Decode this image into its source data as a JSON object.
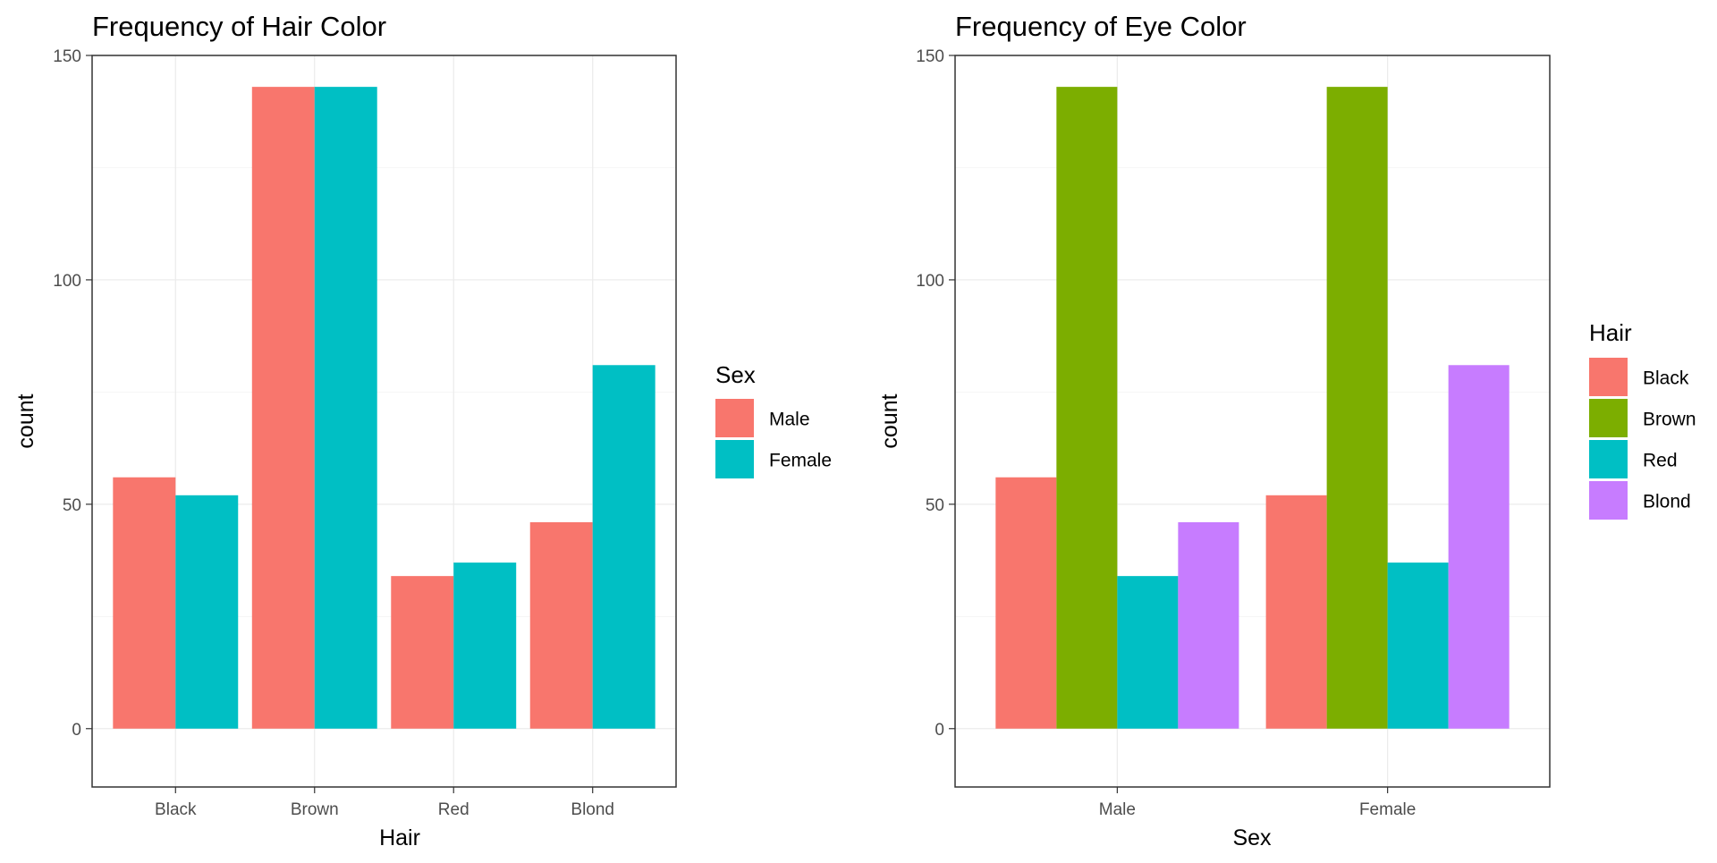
{
  "chart_data": [
    {
      "type": "bar",
      "title": "Frequency of Hair Color",
      "xlabel": "Hair",
      "ylabel": "count",
      "categories": [
        "Black",
        "Brown",
        "Red",
        "Blond"
      ],
      "series": [
        {
          "name": "Male",
          "values": [
            56,
            143,
            34,
            46
          ]
        },
        {
          "name": "Female",
          "values": [
            52,
            143,
            37,
            81
          ]
        }
      ],
      "ylim": [
        -13,
        150
      ],
      "yticks": [
        0,
        50,
        100,
        150
      ],
      "grid": true,
      "legend": {
        "title": "Sex",
        "placement": "right"
      },
      "colors": [
        "#F8766D",
        "#00BFC4"
      ]
    },
    {
      "type": "bar",
      "title": "Frequency of Eye Color",
      "xlabel": "Sex",
      "ylabel": "count",
      "categories": [
        "Male",
        "Female"
      ],
      "series": [
        {
          "name": "Black",
          "values": [
            56,
            52
          ]
        },
        {
          "name": "Brown",
          "values": [
            143,
            143
          ]
        },
        {
          "name": "Red",
          "values": [
            34,
            37
          ]
        },
        {
          "name": "Blond",
          "values": [
            46,
            81
          ]
        }
      ],
      "ylim": [
        -13,
        150
      ],
      "yticks": [
        0,
        50,
        100,
        150
      ],
      "grid": true,
      "legend": {
        "title": "Hair",
        "placement": "right"
      },
      "colors": [
        "#F8766D",
        "#7CAE00",
        "#00BFC4",
        "#C77CFF"
      ]
    }
  ]
}
